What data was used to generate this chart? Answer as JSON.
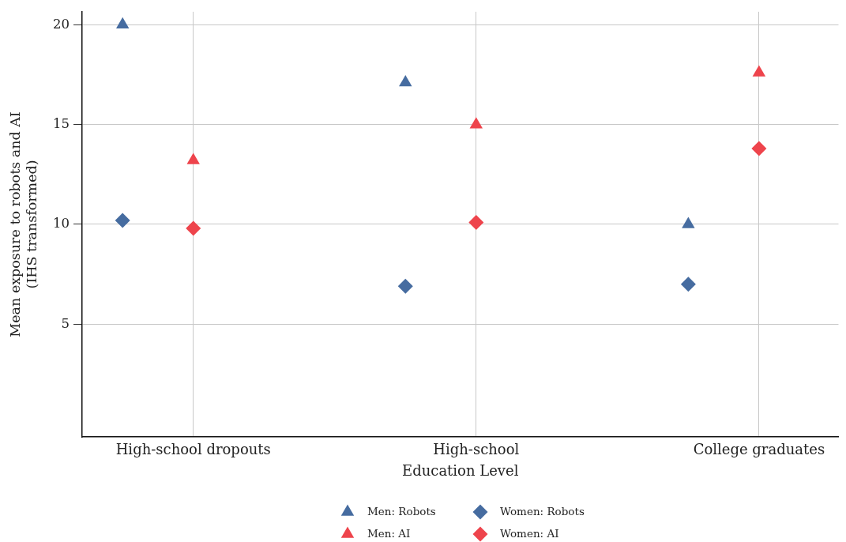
{
  "chart_data": {
    "type": "scatter",
    "xlabel": "Education Level",
    "ylabel": "Mean exposure to robots and AI\n(IHS transformed)",
    "categories": [
      "High-school dropouts",
      "High-school",
      "College graduates"
    ],
    "ylim": [
      -0.65,
      20.65
    ],
    "yticks": [
      5,
      10,
      15,
      20
    ],
    "grid": true,
    "legend": "bottom",
    "series": [
      {
        "name": "Men: Robots",
        "color": "#466ca0",
        "marker": "triangle",
        "values": [
          20.0,
          17.1,
          10.0
        ]
      },
      {
        "name": "Women: Robots",
        "color": "#466ca0",
        "marker": "diamond",
        "values": [
          10.2,
          6.9,
          7.0
        ]
      },
      {
        "name": "Men: AI",
        "color": "#ee444c",
        "marker": "triangle",
        "values": [
          13.2,
          15.0,
          17.6
        ]
      },
      {
        "name": "Women: AI",
        "color": "#ee444c",
        "marker": "diamond",
        "values": [
          9.8,
          10.1,
          13.8
        ]
      }
    ]
  }
}
